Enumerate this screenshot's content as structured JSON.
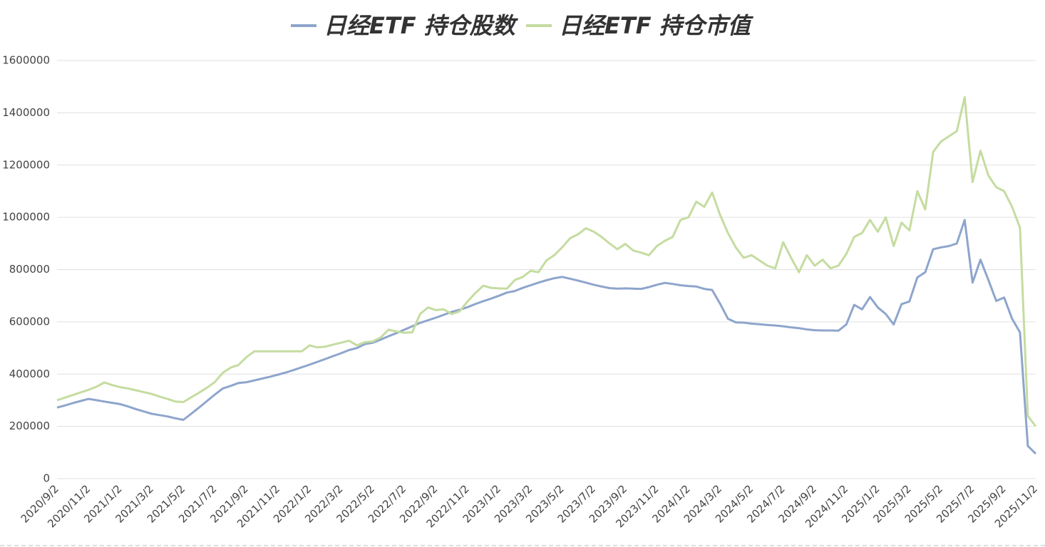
{
  "chart_data": {
    "type": "line",
    "categories": [
      "2020/9/2",
      null,
      null,
      null,
      "2020/11/2",
      null,
      null,
      null,
      "2021/1/2",
      null,
      null,
      null,
      "2021/3/2",
      null,
      null,
      null,
      "2021/5/2",
      null,
      null,
      null,
      "2021/7/2",
      null,
      null,
      null,
      "2021/9/2",
      null,
      null,
      null,
      "2021/11/2",
      null,
      null,
      null,
      "2022/1/2",
      null,
      null,
      null,
      "2022/3/2",
      null,
      null,
      null,
      "2022/5/2",
      null,
      null,
      null,
      "2022/7/2",
      null,
      null,
      null,
      "2022/9/2",
      null,
      null,
      null,
      "2022/11/2",
      null,
      null,
      null,
      "2023/1/2",
      null,
      null,
      null,
      "2023/3/2",
      null,
      null,
      null,
      "2023/5/2",
      null,
      null,
      null,
      "2023/7/2",
      null,
      null,
      null,
      "2023/9/2",
      null,
      null,
      null,
      "2023/11/2",
      null,
      null,
      null,
      "2024/1/2",
      null,
      null,
      null,
      "2024/3/2",
      null,
      null,
      null,
      "2024/5/2",
      null,
      null,
      null,
      "2024/7/2",
      null,
      null,
      null,
      "2024/9/2",
      null,
      null,
      null,
      "2024/11/2",
      null,
      null,
      null,
      "2025/1/2",
      null,
      null,
      null,
      "2025/3/2",
      null,
      null,
      null,
      "2025/5/2",
      null,
      null,
      null,
      "2025/7/2",
      null,
      null,
      null,
      "2025/9/2",
      null,
      null,
      null,
      "2025/11/2"
    ],
    "series": [
      {
        "name": "日经ETF 持仓股数",
        "color": "#8ea5cc",
        "values": [
          272000,
          280000,
          289000,
          297000,
          305000,
          300000,
          295000,
          290000,
          285000,
          276000,
          266000,
          257000,
          248000,
          243000,
          238000,
          231000,
          225000,
          248000,
          272000,
          297000,
          322000,
          345000,
          355000,
          366000,
          369000,
          376000,
          383000,
          390000,
          398000,
          406000,
          416000,
          426000,
          436000,
          447000,
          458000,
          469000,
          480000,
          492000,
          500000,
          515000,
          520000,
          532000,
          545000,
          557000,
          570000,
          583000,
          596000,
          606000,
          616000,
          627000,
          638000,
          646000,
          656000,
          668000,
          679000,
          689000,
          700000,
          712000,
          718000,
          730000,
          740000,
          750000,
          759000,
          767000,
          772000,
          765000,
          758000,
          750000,
          742000,
          735000,
          729000,
          727000,
          728000,
          727000,
          726000,
          733000,
          742000,
          749000,
          745000,
          740000,
          737000,
          735000,
          726000,
          722000,
          670000,
          612000,
          598000,
          597000,
          593000,
          591000,
          588000,
          586000,
          583000,
          579000,
          576000,
          571000,
          568000,
          567000,
          567000,
          566000,
          590000,
          665000,
          648000,
          695000,
          655000,
          630000,
          590000,
          668000,
          678000,
          770000,
          790000,
          878000,
          885000,
          890000,
          900000,
          990000,
          750000,
          838000,
          760000,
          680000,
          693000,
          612000,
          560000,
          125000,
          95000
        ]
      },
      {
        "name": "日经ETF 持仓市值",
        "color": "#c5dca0",
        "values": [
          300000,
          310000,
          320000,
          330000,
          340000,
          352000,
          368000,
          358000,
          350000,
          345000,
          338000,
          331000,
          324000,
          314000,
          305000,
          295000,
          293000,
          311000,
          329000,
          348000,
          370000,
          405000,
          425000,
          435000,
          465000,
          487000,
          487000,
          487000,
          487000,
          487000,
          487000,
          487000,
          510000,
          502000,
          505000,
          513000,
          520000,
          528000,
          510000,
          522000,
          525000,
          540000,
          570000,
          563000,
          558000,
          560000,
          630000,
          655000,
          645000,
          648000,
          630000,
          640000,
          678000,
          710000,
          738000,
          730000,
          728000,
          727000,
          760000,
          772000,
          795000,
          790000,
          835000,
          855000,
          885000,
          920000,
          935000,
          958000,
          945000,
          925000,
          900000,
          878000,
          898000,
          873000,
          865000,
          855000,
          890000,
          910000,
          925000,
          990000,
          1000000,
          1060000,
          1040000,
          1095000,
          1010000,
          940000,
          885000,
          845000,
          855000,
          835000,
          815000,
          805000,
          905000,
          845000,
          790000,
          855000,
          815000,
          838000,
          805000,
          815000,
          860000,
          925000,
          940000,
          990000,
          945000,
          1000000,
          890000,
          980000,
          950000,
          1100000,
          1030000,
          1250000,
          1290000,
          1310000,
          1330000,
          1460000,
          1135000,
          1255000,
          1160000,
          1115000,
          1100000,
          1040000,
          960000,
          240000,
          200000
        ]
      }
    ],
    "ylim": [
      0,
      1600000
    ],
    "yticks": [
      0,
      200000,
      400000,
      600000,
      800000,
      1000000,
      1200000,
      1400000,
      1600000
    ],
    "grid": true,
    "legend": "top"
  }
}
